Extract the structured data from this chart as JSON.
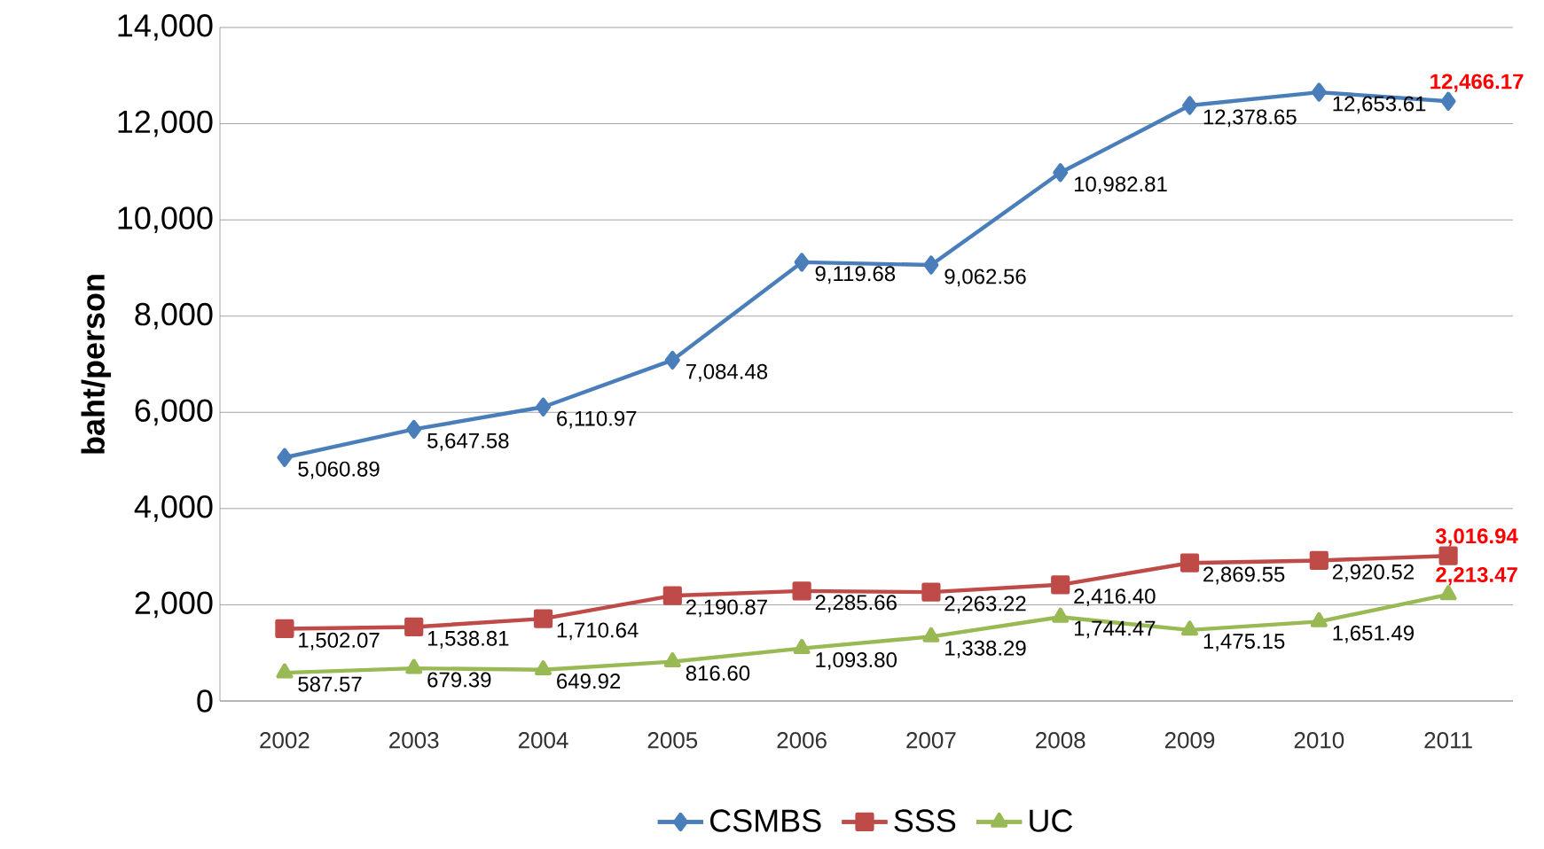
{
  "chart_data": {
    "type": "line",
    "ylabel": "baht/person",
    "categories": [
      "2002",
      "2003",
      "2004",
      "2005",
      "2006",
      "2007",
      "2008",
      "2009",
      "2010",
      "2011"
    ],
    "series": [
      {
        "name": "CSMBS",
        "color": "#4a7ebb",
        "marker": "diamond",
        "values": [
          5060.89,
          5647.58,
          6110.97,
          7084.48,
          9119.68,
          9062.56,
          10982.81,
          12378.65,
          12653.61,
          12466.17
        ],
        "value_labels": [
          "5,060.89",
          "5,647.58",
          "6,110.97",
          "7,084.48",
          "9,119.68",
          "9,062.56",
          "10,982.81",
          "12,378.65",
          "12,653.61",
          "12,466.17"
        ]
      },
      {
        "name": "SSS",
        "color": "#be4b48",
        "marker": "square",
        "values": [
          1502.07,
          1538.81,
          1710.64,
          2190.87,
          2285.66,
          2263.22,
          2416.4,
          2869.55,
          2920.52,
          3016.94
        ],
        "value_labels": [
          "1,502.07",
          "1,538.81",
          "1,710.64",
          "2,190.87",
          "2,285.66",
          "2,263.22",
          "2,416.40",
          "2,869.55",
          "2,920.52",
          "3,016.94"
        ]
      },
      {
        "name": "UC",
        "color": "#98b954",
        "marker": "triangle",
        "values": [
          587.57,
          679.39,
          649.92,
          816.6,
          1093.8,
          1338.29,
          1744.47,
          1475.15,
          1651.49,
          2213.47
        ],
        "value_labels": [
          "587.57",
          "679.39",
          "649.92",
          "816.60",
          "1,093.80",
          "1,338.29",
          "1,744.47",
          "1,475.15",
          "1,651.49",
          "2,213.47"
        ]
      }
    ],
    "ylim": [
      0,
      14000
    ],
    "yticks": [
      0,
      {
        "value": 2000,
        "label": "2,000"
      },
      {
        "value": 4000,
        "label": "4,000"
      },
      {
        "value": 6000,
        "label": "6,000"
      },
      {
        "value": 8000,
        "label": "8,000"
      },
      {
        "value": 10000,
        "label": "10,000"
      },
      {
        "value": 12000,
        "label": "12,000"
      },
      {
        "value": 14000,
        "label": "14,000"
      }
    ],
    "grid": "y",
    "legend": "bottom",
    "line_style": "solid"
  }
}
